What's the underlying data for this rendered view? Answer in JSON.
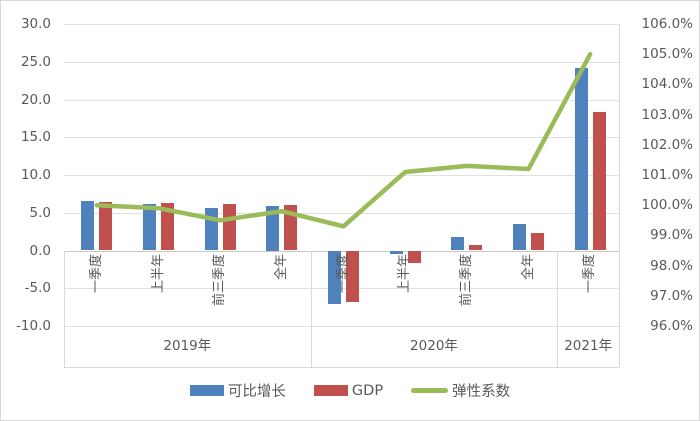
{
  "chart_data": {
    "type": "combo",
    "title": "",
    "categories": [
      "一季度",
      "上半年",
      "前三季度",
      "全年",
      "一季度",
      "上半年",
      "前三季度",
      "全年",
      "一季度"
    ],
    "category_groups": [
      {
        "label": "2019年",
        "span": 4
      },
      {
        "label": "2020年",
        "span": 4
      },
      {
        "label": "2021年",
        "span": 1
      }
    ],
    "series": [
      {
        "name": "可比增长",
        "type": "bar",
        "axis": "left",
        "color": "#4F81BD",
        "values": [
          6.5,
          6.1,
          5.6,
          5.9,
          -7.1,
          -0.5,
          1.8,
          3.5,
          24.2
        ]
      },
      {
        "name": "GDP",
        "type": "bar",
        "axis": "left",
        "color": "#C0504D",
        "values": [
          6.4,
          6.3,
          6.1,
          6.0,
          -6.8,
          -1.6,
          0.7,
          2.3,
          18.3
        ]
      },
      {
        "name": "弹性系数",
        "type": "line",
        "axis": "right",
        "unit": "%",
        "color": "#9BBB59",
        "values": [
          100.0,
          99.9,
          99.5,
          99.8,
          99.3,
          101.1,
          101.3,
          101.2,
          105.0
        ]
      }
    ],
    "left_axis": {
      "min": -10,
      "max": 30,
      "step": 5,
      "tick_labels": [
        "30.0",
        "25.0",
        "20.0",
        "15.0",
        "10.0",
        "5.0",
        "0.0",
        "-5.0",
        "-10.0"
      ]
    },
    "right_axis": {
      "min": 96,
      "max": 106,
      "step": 1,
      "tick_labels": [
        "106.0%",
        "105.0%",
        "104.0%",
        "103.0%",
        "102.0%",
        "101.0%",
        "100.0%",
        "99.0%",
        "98.0%",
        "97.0%",
        "96.0%"
      ]
    },
    "legend": {
      "position": "bottom",
      "entries": [
        "可比增长",
        "GDP",
        "弹性系数"
      ]
    },
    "grid": true,
    "colors": {
      "gridline": "#E0E0E0",
      "axis_text": "#595959",
      "background": "#FFFFFF",
      "border": "#D8D8D8"
    }
  }
}
